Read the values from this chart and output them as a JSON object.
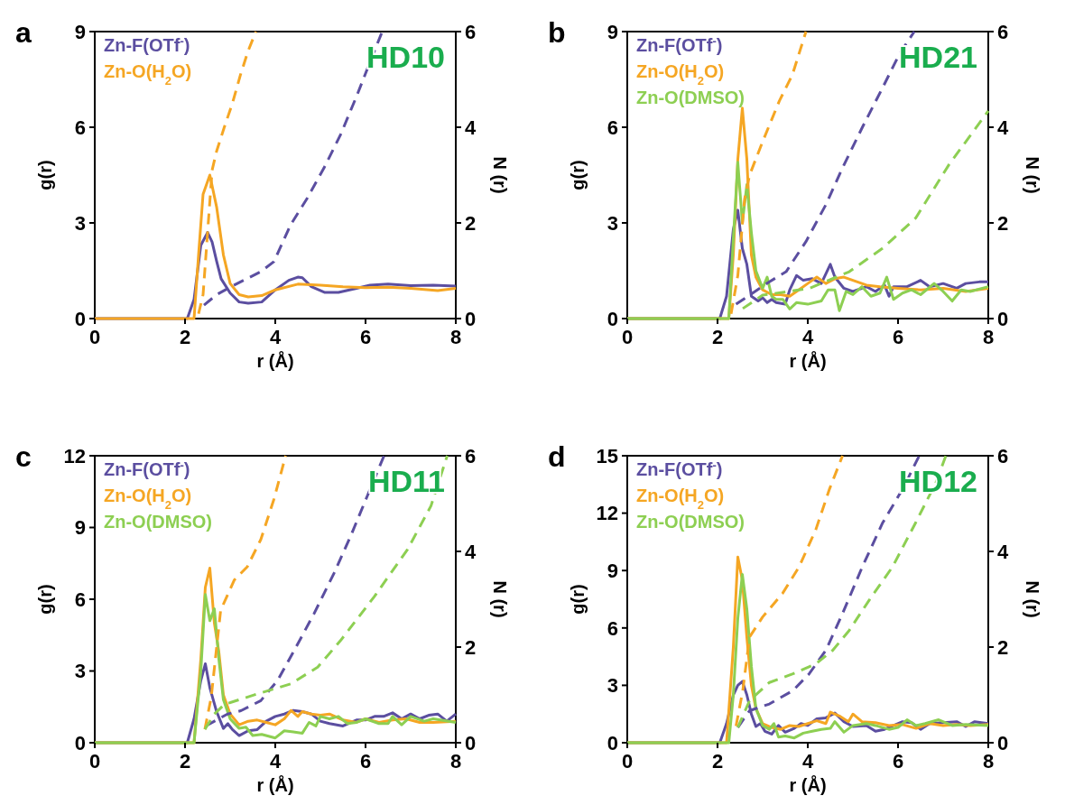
{
  "chart_data": [
    {
      "type": "line",
      "title": "a",
      "annotations": [
        "HD10"
      ],
      "xlabel": "r (Å)",
      "ylabel": "g(r)",
      "y2label": "N (r)",
      "xlim": [
        0,
        8
      ],
      "xticks": [
        0,
        2,
        4,
        6,
        8
      ],
      "ylim": [
        0,
        9
      ],
      "yticks": [
        0,
        3,
        6,
        9
      ],
      "y2lim": [
        0,
        6
      ],
      "y2ticks": [
        0,
        2,
        4,
        6
      ],
      "legend": "top left",
      "series": [
        {
          "name": "Zn-F(OTf$^{-}$)",
          "color": "#5b4ea0",
          "line_style": "solid",
          "x": [
            0,
            2.05,
            2.2,
            2.35,
            2.5,
            2.6,
            2.7,
            2.8,
            3.0,
            3.2,
            3.4,
            3.7,
            4.0,
            4.3,
            4.5,
            4.6,
            4.8,
            5.1,
            5.4,
            5.8,
            6.1,
            6.5,
            7.0,
            7.5,
            8
          ],
          "values": [
            0,
            0,
            0.6,
            2.3,
            2.7,
            2.4,
            1.8,
            1.25,
            0.8,
            0.52,
            0.48,
            0.52,
            0.9,
            1.2,
            1.3,
            1.28,
            1.0,
            0.82,
            0.82,
            0.95,
            1.05,
            1.08,
            1.03,
            1.05,
            1.02
          ]
        },
        {
          "name": "Zn-O(H$_{2}$O)",
          "color": "#f5a623",
          "line_style": "solid",
          "x": [
            0,
            2.2,
            2.3,
            2.4,
            2.55,
            2.7,
            2.85,
            3.0,
            3.2,
            3.4,
            3.7,
            4.0,
            4.5,
            5.0,
            5.5,
            6.0,
            6.5,
            7.0,
            7.6,
            8
          ],
          "values": [
            0,
            0,
            2.0,
            3.9,
            4.5,
            3.5,
            2.0,
            1.1,
            0.75,
            0.68,
            0.72,
            0.9,
            1.08,
            1.05,
            1.0,
            0.97,
            0.98,
            0.95,
            0.88,
            0.95
          ]
        },
        {
          "color": "#5b4ea0",
          "axis": "y2",
          "line_style": "dashed",
          "x": [
            2.42,
            2.7,
            3.09,
            3.68,
            3.97,
            4.34,
            4.71,
            5.08,
            5.45,
            5.82,
            6.11,
            6.37
          ],
          "values": [
            0.28,
            0.5,
            0.7,
            0.98,
            1.19,
            1.96,
            2.52,
            3.15,
            3.85,
            4.69,
            5.39,
            6
          ]
        },
        {
          "color": "#f5a623",
          "axis": "y2",
          "line_style": "dashed",
          "x": [
            2.3,
            2.4,
            2.5,
            2.6,
            2.7,
            2.87,
            3.05,
            3.23,
            3.4,
            3.57
          ],
          "values": [
            0.1,
            0.5,
            1.8,
            3.1,
            3.5,
            4.0,
            4.5,
            5.1,
            5.6,
            6
          ]
        }
      ]
    },
    {
      "type": "line",
      "title": "b",
      "annotations": [
        "HD21"
      ],
      "xlabel": "r (Å)",
      "ylabel": "g(r)",
      "y2label": "N (r)",
      "xlim": [
        0,
        8
      ],
      "xticks": [
        0,
        2,
        4,
        6,
        8
      ],
      "ylim": [
        0,
        9
      ],
      "yticks": [
        0,
        3,
        6,
        9
      ],
      "y2lim": [
        0,
        6
      ],
      "y2ticks": [
        0,
        2,
        4,
        6
      ],
      "legend": "top left",
      "series": [
        {
          "name": "Zn-F(OTf$^{-}$)",
          "color": "#5b4ea0",
          "line_style": "solid",
          "x": [
            0,
            2.05,
            2.2,
            2.35,
            2.45,
            2.55,
            2.65,
            2.75,
            2.9,
            3.0,
            3.1,
            3.2,
            3.3,
            3.5,
            3.6,
            3.75,
            3.9,
            4.1,
            4.3,
            4.5,
            4.6,
            4.8,
            5.0,
            5.3,
            5.5,
            5.7,
            5.8,
            5.9,
            6.2,
            6.5,
            6.7,
            7.0,
            7.3,
            7.5,
            7.8,
            8
          ],
          "values": [
            0,
            0,
            0.7,
            2.8,
            3.4,
            2.2,
            1.7,
            0.7,
            0.55,
            0.65,
            0.5,
            0.6,
            0.5,
            0.45,
            0.9,
            1.35,
            1.2,
            1.25,
            1.1,
            1.7,
            1.3,
            0.95,
            0.85,
            1.0,
            0.85,
            1.05,
            0.7,
            1.0,
            1.0,
            1.2,
            1.0,
            1.1,
            0.95,
            1.1,
            1.15,
            1.15
          ]
        },
        {
          "name": "Zn-O(H$_{2}$O)",
          "color": "#f5a623",
          "line_style": "solid",
          "x": [
            0,
            2.25,
            2.35,
            2.45,
            2.55,
            2.65,
            2.75,
            2.85,
            3.0,
            3.2,
            3.4,
            3.6,
            3.8,
            4.0,
            4.2,
            4.4,
            4.6,
            4.8,
            5.0,
            5.3,
            5.6,
            6.0,
            6.5,
            7.0,
            7.5,
            8
          ],
          "values": [
            0,
            0,
            2.0,
            5.0,
            6.6,
            5.0,
            2.0,
            1.3,
            0.9,
            0.75,
            0.75,
            0.7,
            0.9,
            1.1,
            1.3,
            1.1,
            1.25,
            1.3,
            1.2,
            1.05,
            1.0,
            0.95,
            0.9,
            0.95,
            0.85,
            0.95
          ]
        },
        {
          "name": "Zn-O(DMSO)",
          "color": "#8dcf52",
          "line_style": "solid",
          "x": [
            0,
            2.25,
            2.35,
            2.45,
            2.55,
            2.65,
            2.75,
            2.85,
            3.0,
            3.1,
            3.2,
            3.3,
            3.45,
            3.6,
            3.75,
            4.0,
            4.3,
            4.45,
            4.6,
            4.7,
            4.85,
            5.0,
            5.2,
            5.4,
            5.6,
            5.75,
            5.9,
            6.1,
            6.3,
            6.5,
            6.8,
            7.0,
            7.2,
            7.4,
            7.6,
            8
          ],
          "values": [
            0,
            0,
            2.5,
            4.9,
            3.0,
            4.2,
            2.7,
            1.5,
            0.95,
            1.3,
            0.7,
            0.6,
            0.6,
            0.3,
            0.5,
            0.45,
            0.55,
            0.9,
            0.9,
            0.25,
            0.85,
            0.75,
            1.0,
            0.7,
            0.8,
            1.3,
            0.6,
            0.8,
            0.9,
            0.75,
            1.1,
            0.85,
            0.55,
            0.9,
            0.85,
            1.0
          ]
        },
        {
          "color": "#5b4ea0",
          "axis": "y2",
          "line_style": "dashed",
          "x": [
            2.41,
            3.15,
            3.52,
            3.96,
            4.4,
            4.77,
            5.21,
            5.66,
            6.03,
            6.36
          ],
          "values": [
            0.3,
            0.77,
            0.98,
            1.61,
            2.38,
            3.15,
            4.0,
            4.83,
            5.53,
            6
          ]
        },
        {
          "color": "#f5a623",
          "axis": "y2",
          "line_style": "dashed",
          "x": [
            2.3,
            2.45,
            2.6,
            2.71,
            3.0,
            3.37,
            3.66,
            3.96
          ],
          "values": [
            0.1,
            0.9,
            2.5,
            3.0,
            3.7,
            4.55,
            5.1,
            6
          ]
        },
        {
          "color": "#8dcf52",
          "axis": "y2",
          "line_style": "dashed",
          "x": [
            2.56,
            3.0,
            4.03,
            4.92,
            5.66,
            6.39,
            7.13,
            8
          ],
          "values": [
            0.21,
            0.49,
            0.63,
            0.98,
            1.47,
            2.1,
            3.22,
            4.34
          ]
        }
      ]
    },
    {
      "type": "line",
      "title": "c",
      "annotations": [
        "HD11"
      ],
      "xlabel": "r (Å)",
      "ylabel": "g(r)",
      "y2label": "N (r)",
      "xlim": [
        0,
        8
      ],
      "xticks": [
        0,
        2,
        4,
        6,
        8
      ],
      "ylim": [
        0,
        12
      ],
      "yticks": [
        0,
        3,
        6,
        9,
        12
      ],
      "y2lim": [
        0,
        6
      ],
      "y2ticks": [
        0,
        2,
        4,
        6
      ],
      "legend": "top left",
      "series": [
        {
          "name": "Zn-F(OTf$^{-}$)",
          "color": "#5b4ea0",
          "line_style": "solid",
          "x": [
            0,
            2.05,
            2.2,
            2.35,
            2.45,
            2.55,
            2.7,
            2.85,
            2.95,
            3.05,
            3.2,
            3.4,
            3.6,
            3.8,
            4.0,
            4.2,
            4.4,
            4.6,
            4.8,
            5.0,
            5.2,
            5.5,
            5.8,
            6.0,
            6.2,
            6.4,
            6.6,
            6.8,
            7.0,
            7.2,
            7.4,
            7.6,
            7.8,
            8
          ],
          "values": [
            0,
            0,
            1.0,
            2.6,
            3.3,
            2.3,
            1.3,
            0.6,
            0.8,
            0.55,
            0.3,
            0.5,
            0.55,
            0.9,
            1.1,
            1.2,
            1.35,
            1.3,
            1.2,
            0.9,
            0.8,
            0.7,
            0.95,
            0.95,
            1.1,
            1.1,
            1.25,
            1.0,
            1.2,
            1.0,
            1.15,
            1.2,
            0.9,
            1.2
          ]
        },
        {
          "name": "Zn-O(H$_{2}$O)",
          "color": "#f5a623",
          "line_style": "solid",
          "x": [
            0,
            2.2,
            2.35,
            2.45,
            2.55,
            2.65,
            2.75,
            2.85,
            3.0,
            3.2,
            3.4,
            3.6,
            3.8,
            4.0,
            4.2,
            4.35,
            4.5,
            4.6,
            4.8,
            5.0,
            5.2,
            5.5,
            5.8,
            6.0,
            6.3,
            6.6,
            6.9,
            7.2,
            7.5,
            8
          ],
          "values": [
            0,
            0,
            3.5,
            6.5,
            7.3,
            5.0,
            3.8,
            2.0,
            1.2,
            0.75,
            0.9,
            0.95,
            0.85,
            0.75,
            1.0,
            1.35,
            1.1,
            1.3,
            1.2,
            1.15,
            1.2,
            0.95,
            0.85,
            1.0,
            0.85,
            0.95,
            1.0,
            0.85,
            0.85,
            0.9
          ]
        },
        {
          "name": "Zn-O(DMSO)",
          "color": "#8dcf52",
          "line_style": "solid",
          "x": [
            0,
            2.2,
            2.35,
            2.45,
            2.55,
            2.65,
            2.75,
            2.85,
            3.0,
            3.2,
            3.35,
            3.5,
            3.7,
            4.0,
            4.2,
            4.4,
            4.6,
            4.75,
            4.9,
            5.0,
            5.2,
            5.4,
            5.6,
            5.8,
            6.0,
            6.3,
            6.5,
            6.6,
            6.8,
            7.0,
            7.3,
            7.5,
            8
          ],
          "values": [
            0,
            0,
            3.0,
            6.2,
            5.1,
            5.6,
            3.5,
            1.8,
            1.0,
            0.6,
            0.65,
            0.3,
            0.35,
            0.2,
            0.5,
            0.45,
            0.4,
            0.85,
            0.7,
            1.1,
            1.0,
            1.1,
            0.8,
            0.85,
            1.0,
            0.8,
            0.8,
            1.1,
            0.75,
            1.1,
            0.9,
            1.0,
            0.85
          ]
        },
        {
          "color": "#5b4ea0",
          "axis": "y2",
          "line_style": "dashed",
          "x": [
            2.46,
            2.94,
            3.24,
            3.68,
            4.05,
            4.42,
            4.86,
            5.3,
            5.67,
            6.04,
            6.41
          ],
          "values": [
            0.35,
            0.6,
            0.67,
            0.88,
            1.3,
            1.93,
            2.7,
            3.54,
            4.32,
            5.16,
            6
          ]
        },
        {
          "color": "#f5a623",
          "axis": "y2",
          "line_style": "dashed",
          "x": [
            2.44,
            2.58,
            2.79,
            3.09,
            3.38,
            3.68,
            3.97,
            4.23
          ],
          "values": [
            0.28,
            0.95,
            2.77,
            3.4,
            3.68,
            4.25,
            5.09,
            6
          ]
        },
        {
          "color": "#8dcf52",
          "axis": "y2",
          "line_style": "dashed",
          "x": [
            2.44,
            2.65,
            2.87,
            3.6,
            4.34,
            4.94,
            5.45,
            6.19,
            6.93,
            7.45,
            7.81
          ],
          "values": [
            0.28,
            0.6,
            0.8,
            1.02,
            1.23,
            1.58,
            2.14,
            3.05,
            4.04,
            4.95,
            6
          ]
        }
      ]
    },
    {
      "type": "line",
      "title": "d",
      "annotations": [
        "HD12"
      ],
      "xlabel": "r (Å)",
      "ylabel": "g(r)",
      "y2label": "N (r)",
      "xlim": [
        0,
        8
      ],
      "xticks": [
        0,
        2,
        4,
        6,
        8
      ],
      "ylim": [
        0,
        15
      ],
      "yticks": [
        0,
        3,
        6,
        9,
        12,
        15
      ],
      "y2lim": [
        0,
        6
      ],
      "y2ticks": [
        0,
        2,
        4,
        6
      ],
      "legend": "top left",
      "series": [
        {
          "name": "Zn-F(OTf$^{-}$)",
          "color": "#5b4ea0",
          "line_style": "solid",
          "x": [
            0,
            2.05,
            2.2,
            2.35,
            2.45,
            2.55,
            2.65,
            2.75,
            2.85,
            2.95,
            3.05,
            3.2,
            3.35,
            3.5,
            3.7,
            3.85,
            4.0,
            4.2,
            4.4,
            4.6,
            4.8,
            5.0,
            5.3,
            5.5,
            5.7,
            5.9,
            6.1,
            6.3,
            6.5,
            6.7,
            7.0,
            7.3,
            7.5,
            7.7,
            8
          ],
          "values": [
            0,
            0,
            1.0,
            2.5,
            3.0,
            3.2,
            2.5,
            1.5,
            0.85,
            1.0,
            0.6,
            0.45,
            0.9,
            0.55,
            0.75,
            1.0,
            0.9,
            1.25,
            1.3,
            1.55,
            1.1,
            0.85,
            0.9,
            0.6,
            0.7,
            0.9,
            1.1,
            1.05,
            0.7,
            1.0,
            1.05,
            1.1,
            0.85,
            1.1,
            1.0
          ]
        },
        {
          "name": "Zn-O(H$_{2}$O)",
          "color": "#f5a623",
          "line_style": "solid",
          "x": [
            0,
            2.2,
            2.35,
            2.45,
            2.55,
            2.65,
            2.75,
            2.85,
            3.0,
            3.2,
            3.4,
            3.6,
            3.8,
            4.0,
            4.2,
            4.4,
            4.5,
            4.7,
            4.9,
            5.0,
            5.2,
            5.5,
            5.8,
            6.1,
            6.4,
            6.7,
            7.0,
            7.3,
            7.6,
            8
          ],
          "values": [
            0,
            0,
            5.0,
            9.7,
            8.5,
            5.5,
            3.0,
            1.8,
            1.0,
            0.8,
            0.7,
            0.9,
            0.85,
            1.0,
            1.15,
            1.0,
            1.6,
            1.4,
            1.1,
            1.5,
            1.1,
            1.05,
            0.9,
            0.95,
            0.75,
            1.0,
            0.9,
            0.95,
            0.9,
            0.95
          ]
        },
        {
          "name": "Zn-O(DMSO)",
          "color": "#8dcf52",
          "line_style": "solid",
          "x": [
            0,
            2.25,
            2.35,
            2.45,
            2.55,
            2.65,
            2.75,
            2.85,
            3.0,
            3.15,
            3.25,
            3.35,
            3.5,
            3.7,
            3.9,
            4.1,
            4.3,
            4.5,
            4.6,
            4.8,
            5.0,
            5.3,
            5.5,
            5.8,
            6.0,
            6.2,
            6.4,
            6.6,
            6.9,
            7.2,
            7.5,
            8
          ],
          "values": [
            0,
            0,
            2.5,
            6.5,
            8.8,
            7.0,
            4.0,
            1.8,
            0.9,
            0.7,
            1.0,
            0.3,
            0.35,
            0.25,
            0.5,
            0.6,
            0.7,
            0.75,
            1.1,
            0.55,
            0.9,
            1.0,
            0.9,
            0.7,
            0.8,
            1.2,
            0.9,
            1.0,
            1.2,
            0.9,
            0.95,
            0.9
          ]
        },
        {
          "color": "#5b4ea0",
          "axis": "y2",
          "line_style": "dashed",
          "x": [
            2.45,
            2.71,
            3.15,
            3.67,
            4.03,
            4.4,
            4.77,
            5.21,
            5.66,
            6.1,
            6.47
          ],
          "values": [
            0.32,
            0.67,
            0.81,
            1.09,
            1.44,
            1.93,
            2.7,
            3.68,
            4.6,
            5.3,
            6
          ]
        },
        {
          "color": "#f5a623",
          "axis": "y2",
          "line_style": "dashed",
          "x": [
            2.41,
            2.56,
            2.71,
            3.0,
            3.44,
            3.81,
            4.18,
            4.48,
            4.77
          ],
          "values": [
            0.35,
            1.09,
            2.21,
            2.63,
            3.12,
            3.68,
            4.46,
            5.3,
            6
          ]
        },
        {
          "color": "#8dcf52",
          "axis": "y2",
          "line_style": "dashed",
          "x": [
            2.45,
            2.71,
            3.15,
            3.67,
            4.18,
            4.55,
            4.92,
            5.36,
            5.88,
            6.39,
            6.84,
            7.06
          ],
          "values": [
            0.32,
            0.88,
            1.26,
            1.44,
            1.65,
            1.93,
            2.35,
            2.98,
            3.68,
            4.6,
            5.44,
            6
          ]
        }
      ]
    }
  ]
}
